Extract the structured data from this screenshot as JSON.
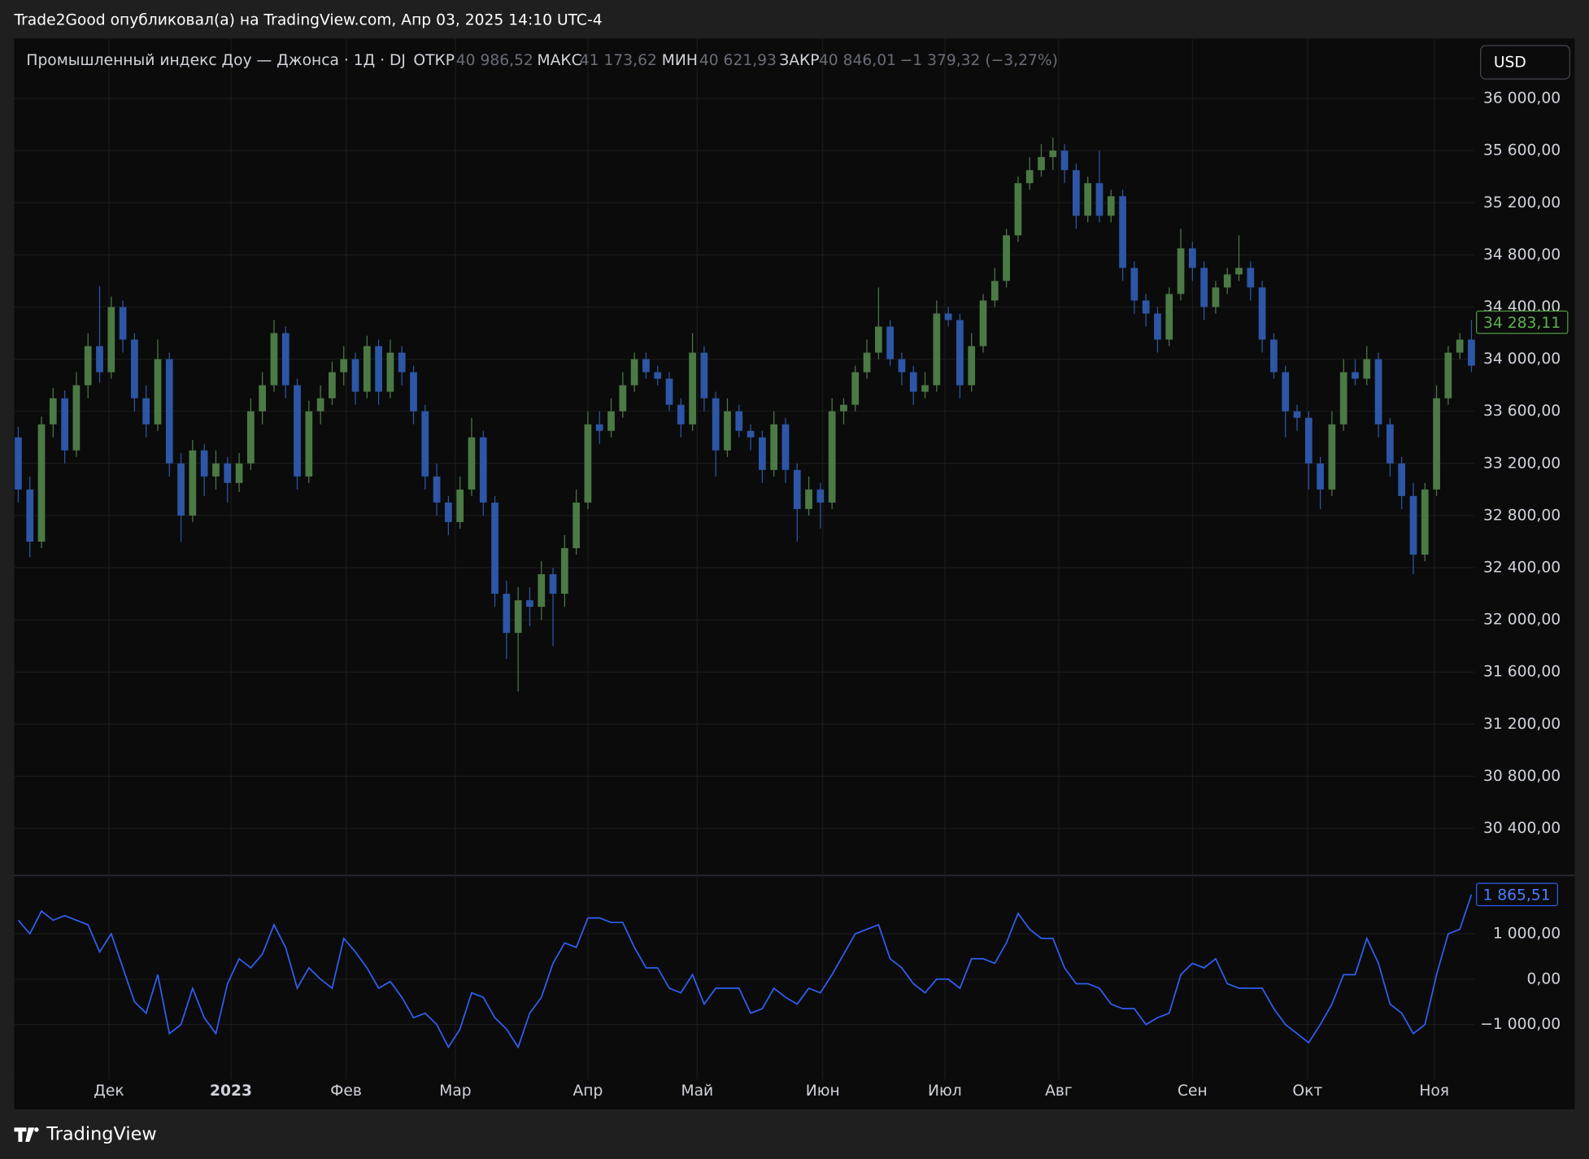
{
  "header": {
    "text": "Trade2Good опубликовал(а) на TradingView.com, Апр 03, 2025 14:10 UTC-4"
  },
  "footer": {
    "brand": "TradingView"
  },
  "chart_data": {
    "type": "candlestick",
    "title": "Промышленный индекс Доу — Джонса · 1Д · DJ",
    "ohlc_legend": [
      {
        "name": "ОТКР",
        "value": 40986.52,
        "label": "40 986,52"
      },
      {
        "name": "МАКС",
        "value": 41173.62,
        "label": "41 173,62"
      },
      {
        "name": "МИН",
        "value": 40621.93,
        "label": "40 621,93"
      },
      {
        "name": "ЗАКР",
        "value": 40846.01,
        "label": "40 846,01"
      }
    ],
    "change": {
      "value": -1379.32,
      "label": "−1 379,32 (−3,27%)"
    },
    "currency": "USD",
    "up_color": "#4b7a45",
    "down_color": "#2d56a6",
    "xlim": [
      0,
      125
    ],
    "xticks": [
      {
        "value": 7.8,
        "label": "Дек"
      },
      {
        "value": 18.3,
        "label": "2023"
      },
      {
        "value": 28.2,
        "label": "Фев"
      },
      {
        "value": 37.6,
        "label": "Мар"
      },
      {
        "value": 49,
        "label": "Апр"
      },
      {
        "value": 58.4,
        "label": "Май"
      },
      {
        "value": 69.2,
        "label": "Июн"
      },
      {
        "value": 79.7,
        "label": "Июл"
      },
      {
        "value": 89.5,
        "label": "Авг"
      },
      {
        "value": 101,
        "label": "Сен"
      },
      {
        "value": 110.9,
        "label": "Окт"
      },
      {
        "value": 121.8,
        "label": "Ноя"
      }
    ],
    "ylim": [
      30040,
      36460
    ],
    "yticks": [
      {
        "value": 30400,
        "label": "30 400,00"
      },
      {
        "value": 30800,
        "label": "30 800,00"
      },
      {
        "value": 31200,
        "label": "31 200,00"
      },
      {
        "value": 31600,
        "label": "31 600,00"
      },
      {
        "value": 32000,
        "label": "32 000,00"
      },
      {
        "value": 32400,
        "label": "32 400,00"
      },
      {
        "value": 32800,
        "label": "32 800,00"
      },
      {
        "value": 33200,
        "label": "33 200,00"
      },
      {
        "value": 33600,
        "label": "33 600,00"
      },
      {
        "value": 34000,
        "label": "34 000,00"
      },
      {
        "value": 34400,
        "label": "34 400,00"
      },
      {
        "value": 34800,
        "label": "34 800,00"
      },
      {
        "value": 35200,
        "label": "35 200,00"
      },
      {
        "value": 35600,
        "label": "35 600,00"
      },
      {
        "value": 36000,
        "label": "36 000,00"
      }
    ],
    "grid": true,
    "last_price": {
      "value": 34283.11,
      "label": "34 283,11"
    },
    "candles": [
      [
        33400,
        33480,
        32900,
        33000
      ],
      [
        33000,
        33100,
        32480,
        32600
      ],
      [
        32600,
        33560,
        32550,
        33500
      ],
      [
        33500,
        33780,
        33400,
        33700
      ],
      [
        33700,
        33760,
        33200,
        33300
      ],
      [
        33300,
        33900,
        33250,
        33800
      ],
      [
        33800,
        34200,
        33700,
        34100
      ],
      [
        34100,
        34560,
        33820,
        33900
      ],
      [
        33900,
        34480,
        33850,
        34400
      ],
      [
        34400,
        34450,
        34050,
        34150
      ],
      [
        34150,
        34200,
        33600,
        33700
      ],
      [
        33700,
        33800,
        33400,
        33500
      ],
      [
        33500,
        34150,
        33450,
        34000
      ],
      [
        34000,
        34050,
        33100,
        33200
      ],
      [
        33200,
        33280,
        32600,
        32800
      ],
      [
        32800,
        33380,
        32750,
        33300
      ],
      [
        33300,
        33350,
        32950,
        33100
      ],
      [
        33100,
        33300,
        33000,
        33200
      ],
      [
        33200,
        33250,
        32900,
        33050
      ],
      [
        33050,
        33280,
        32980,
        33200
      ],
      [
        33200,
        33700,
        33150,
        33600
      ],
      [
        33600,
        33900,
        33500,
        33800
      ],
      [
        33800,
        34300,
        33750,
        34200
      ],
      [
        34200,
        34250,
        33700,
        33800
      ],
      [
        33800,
        33850,
        33000,
        33100
      ],
      [
        33100,
        33680,
        33050,
        33600
      ],
      [
        33600,
        33800,
        33500,
        33700
      ],
      [
        33700,
        33980,
        33650,
        33900
      ],
      [
        33900,
        34100,
        33800,
        34000
      ],
      [
        34000,
        34050,
        33650,
        33750
      ],
      [
        33750,
        34180,
        33700,
        34100
      ],
      [
        34100,
        34150,
        33650,
        33750
      ],
      [
        33750,
        34150,
        33700,
        34050
      ],
      [
        34050,
        34100,
        33800,
        33900
      ],
      [
        33900,
        33950,
        33500,
        33600
      ],
      [
        33600,
        33650,
        33000,
        33100
      ],
      [
        33100,
        33200,
        32800,
        32900
      ],
      [
        32900,
        32950,
        32650,
        32750
      ],
      [
        32750,
        33100,
        32700,
        33000
      ],
      [
        33000,
        33550,
        32950,
        33400
      ],
      [
        33400,
        33450,
        32800,
        32900
      ],
      [
        32900,
        32950,
        32100,
        32200
      ],
      [
        32200,
        32300,
        31700,
        31900
      ],
      [
        31900,
        32250,
        31450,
        32150
      ],
      [
        32150,
        32250,
        31950,
        32100
      ],
      [
        32100,
        32450,
        32000,
        32350
      ],
      [
        32350,
        32400,
        31800,
        32200
      ],
      [
        32200,
        32650,
        32100,
        32550
      ],
      [
        32550,
        33000,
        32500,
        32900
      ],
      [
        32900,
        33600,
        32850,
        33500
      ],
      [
        33500,
        33600,
        33350,
        33450
      ],
      [
        33450,
        33700,
        33400,
        33600
      ],
      [
        33600,
        33900,
        33550,
        33800
      ],
      [
        33800,
        34050,
        33750,
        34000
      ],
      [
        34000,
        34050,
        33850,
        33900
      ],
      [
        33900,
        33950,
        33800,
        33850
      ],
      [
        33850,
        33900,
        33600,
        33650
      ],
      [
        33650,
        33700,
        33400,
        33500
      ],
      [
        33500,
        34200,
        33450,
        34050
      ],
      [
        34050,
        34100,
        33600,
        33700
      ],
      [
        33700,
        33750,
        33100,
        33300
      ],
      [
        33300,
        33700,
        33250,
        33600
      ],
      [
        33600,
        33650,
        33400,
        33450
      ],
      [
        33450,
        33500,
        33300,
        33400
      ],
      [
        33400,
        33450,
        33050,
        33150
      ],
      [
        33150,
        33600,
        33100,
        33500
      ],
      [
        33500,
        33550,
        33050,
        33150
      ],
      [
        33150,
        33200,
        32600,
        32850
      ],
      [
        32850,
        33100,
        32800,
        33000
      ],
      [
        33000,
        33050,
        32700,
        32900
      ],
      [
        32900,
        33700,
        32850,
        33600
      ],
      [
        33600,
        33700,
        33500,
        33650
      ],
      [
        33650,
        33950,
        33600,
        33900
      ],
      [
        33900,
        34150,
        33850,
        34050
      ],
      [
        34050,
        34550,
        34000,
        34250
      ],
      [
        34250,
        34300,
        33950,
        34000
      ],
      [
        34000,
        34050,
        33800,
        33900
      ],
      [
        33900,
        33950,
        33650,
        33750
      ],
      [
        33750,
        33900,
        33700,
        33800
      ],
      [
        33800,
        34450,
        33750,
        34350
      ],
      [
        34350,
        34400,
        34250,
        34300
      ],
      [
        34300,
        34350,
        33700,
        33800
      ],
      [
        33800,
        34200,
        33750,
        34100
      ],
      [
        34100,
        34500,
        34050,
        34450
      ],
      [
        34450,
        34700,
        34400,
        34600
      ],
      [
        34600,
        35000,
        34550,
        34950
      ],
      [
        34950,
        35400,
        34900,
        35350
      ],
      [
        35350,
        35550,
        35300,
        35450
      ],
      [
        35450,
        35650,
        35400,
        35550
      ],
      [
        35550,
        35700,
        35450,
        35600
      ],
      [
        35600,
        35650,
        35350,
        35450
      ],
      [
        35450,
        35500,
        35000,
        35100
      ],
      [
        35100,
        35400,
        35050,
        35350
      ],
      [
        35350,
        35600,
        35050,
        35100
      ],
      [
        35100,
        35300,
        35050,
        35250
      ],
      [
        35250,
        35300,
        34600,
        34700
      ],
      [
        34700,
        34750,
        34350,
        34450
      ],
      [
        34450,
        34500,
        34250,
        34350
      ],
      [
        34350,
        34400,
        34050,
        34150
      ],
      [
        34150,
        34550,
        34100,
        34500
      ],
      [
        34500,
        35000,
        34450,
        34850
      ],
      [
        34850,
        34900,
        34600,
        34700
      ],
      [
        34700,
        34750,
        34300,
        34400
      ],
      [
        34400,
        34600,
        34350,
        34550
      ],
      [
        34550,
        34700,
        34500,
        34650
      ],
      [
        34650,
        34950,
        34600,
        34700
      ],
      [
        34700,
        34750,
        34450,
        34550
      ],
      [
        34550,
        34600,
        34050,
        34150
      ],
      [
        34150,
        34200,
        33850,
        33900
      ],
      [
        33900,
        33950,
        33400,
        33600
      ],
      [
        33600,
        33650,
        33450,
        33550
      ],
      [
        33550,
        33600,
        33000,
        33200
      ],
      [
        33200,
        33250,
        32850,
        33000
      ],
      [
        33000,
        33600,
        32950,
        33500
      ],
      [
        33500,
        34000,
        33450,
        33900
      ],
      [
        33900,
        34000,
        33800,
        33850
      ],
      [
        33850,
        34100,
        33800,
        34000
      ],
      [
        34000,
        34050,
        33400,
        33500
      ],
      [
        33500,
        33550,
        33100,
        33200
      ],
      [
        33200,
        33250,
        32850,
        32950
      ],
      [
        32950,
        33050,
        32350,
        32500
      ],
      [
        32500,
        33050,
        32450,
        33000
      ],
      [
        33000,
        33800,
        32950,
        33700
      ],
      [
        33700,
        34100,
        33650,
        34050
      ],
      [
        34050,
        34200,
        34000,
        34150
      ],
      [
        34150,
        34300,
        33900,
        33950
      ]
    ],
    "indicator": {
      "type": "line",
      "color": "#2f5ff0",
      "ylim": [
        -2200,
        2267
      ],
      "yticks": [
        {
          "value": -1000,
          "label": "−1 000,00"
        },
        {
          "value": 0,
          "label": "0,00"
        },
        {
          "value": 1000,
          "label": "1 000,00"
        }
      ],
      "last_value_label": "1 865,51",
      "values": [
        1300,
        1000,
        1500,
        1300,
        1400,
        1300,
        1200,
        600,
        1000,
        250,
        -500,
        -750,
        100,
        -1200,
        -1000,
        -200,
        -850,
        -1200,
        -100,
        450,
        250,
        550,
        1200,
        700,
        -200,
        250,
        0,
        -200,
        900,
        600,
        250,
        -200,
        -50,
        -400,
        -850,
        -750,
        -1000,
        -1500,
        -1100,
        -300,
        -400,
        -850,
        -1100,
        -1500,
        -750,
        -400,
        350,
        800,
        700,
        1350,
        1350,
        1250,
        1250,
        700,
        250,
        250,
        -200,
        -300,
        100,
        -550,
        -200,
        -200,
        -200,
        -750,
        -650,
        -200,
        -400,
        -550,
        -200,
        -300,
        100,
        550,
        1000,
        1100,
        1200,
        450,
        250,
        -100,
        -300,
        0,
        0,
        -200,
        450,
        450,
        350,
        800,
        1450,
        1100,
        900,
        900,
        250,
        -100,
        -100,
        -200,
        -550,
        -650,
        -650,
        -1000,
        -850,
        -750,
        100,
        350,
        250,
        450,
        -100,
        -200,
        -200,
        -200,
        -650,
        -1000,
        -1200,
        -1400,
        -1000,
        -550,
        100,
        100,
        900,
        350,
        -550,
        -750,
        -1200,
        -1000,
        100,
        1000,
        1100,
        1865.51
      ]
    }
  }
}
